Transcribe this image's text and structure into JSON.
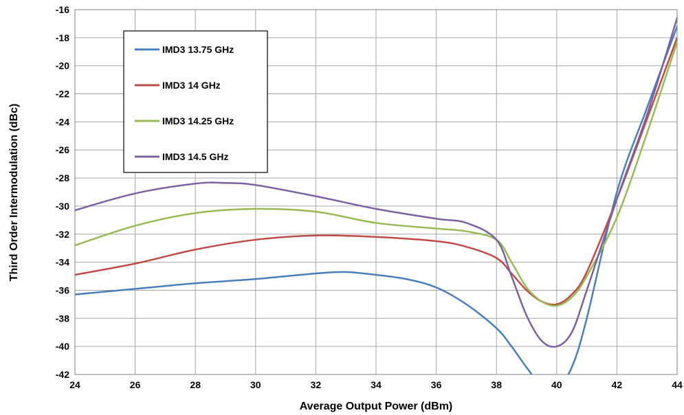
{
  "chart_data": {
    "type": "line",
    "xlabel": "Average Output Power (dBm)",
    "ylabel": "Third Order Intermodulation (dBc)",
    "xlim": [
      24,
      44
    ],
    "ylim": [
      -42,
      -16
    ],
    "xticks": [
      "24",
      "26",
      "28",
      "30",
      "32",
      "34",
      "36",
      "38",
      "40",
      "42",
      "44"
    ],
    "yticks": [
      "-16",
      "-18",
      "-20",
      "-22",
      "-24",
      "-26",
      "-28",
      "-30",
      "-32",
      "-34",
      "-36",
      "-38",
      "-40",
      "-42"
    ],
    "grid": true,
    "legend_position": "top-left",
    "series": [
      {
        "name": "IMD3 13.75 GHz",
        "color": "#4a7ebb",
        "points": [
          [
            24,
            -36.3
          ],
          [
            26,
            -35.9
          ],
          [
            28,
            -35.5
          ],
          [
            30,
            -35.2
          ],
          [
            32,
            -34.8
          ],
          [
            33,
            -34.7
          ],
          [
            34,
            -34.9
          ],
          [
            35,
            -35.2
          ],
          [
            36,
            -35.8
          ],
          [
            37,
            -37.0
          ],
          [
            38,
            -38.7
          ],
          [
            38.5,
            -40.0
          ],
          [
            39,
            -41.5
          ],
          [
            39.5,
            -42.8
          ],
          [
            40,
            -43.0
          ],
          [
            40.5,
            -41.5
          ],
          [
            41,
            -38.0
          ],
          [
            42,
            -29.0
          ],
          [
            43,
            -23.0
          ],
          [
            44,
            -17.2
          ]
        ]
      },
      {
        "name": "IMD3 14 GHz",
        "color": "#be4b48",
        "points": [
          [
            24,
            -34.9
          ],
          [
            26,
            -34.1
          ],
          [
            28,
            -33.1
          ],
          [
            30,
            -32.4
          ],
          [
            32,
            -32.1
          ],
          [
            34,
            -32.2
          ],
          [
            36,
            -32.5
          ],
          [
            37,
            -32.9
          ],
          [
            38,
            -33.7
          ],
          [
            38.5,
            -34.8
          ],
          [
            39,
            -36.0
          ],
          [
            39.5,
            -36.8
          ],
          [
            40,
            -37.0
          ],
          [
            40.5,
            -36.3
          ],
          [
            41,
            -34.7
          ],
          [
            42,
            -29.5
          ],
          [
            43,
            -23.8
          ],
          [
            44,
            -18.0
          ]
        ]
      },
      {
        "name": "IMD3 14.25 GHz",
        "color": "#98b954",
        "points": [
          [
            24,
            -32.8
          ],
          [
            26,
            -31.4
          ],
          [
            28,
            -30.5
          ],
          [
            30,
            -30.2
          ],
          [
            32,
            -30.4
          ],
          [
            34,
            -31.2
          ],
          [
            36,
            -31.6
          ],
          [
            37,
            -31.8
          ],
          [
            38,
            -32.4
          ],
          [
            38.5,
            -34.0
          ],
          [
            39,
            -35.8
          ],
          [
            39.5,
            -36.8
          ],
          [
            40,
            -37.1
          ],
          [
            40.5,
            -36.5
          ],
          [
            41,
            -35.0
          ],
          [
            42,
            -30.8
          ],
          [
            43,
            -24.8
          ],
          [
            44,
            -18.3
          ]
        ]
      },
      {
        "name": "IMD3 14.5 GHz",
        "color": "#7d60a0",
        "points": [
          [
            24,
            -30.3
          ],
          [
            26,
            -29.1
          ],
          [
            28,
            -28.4
          ],
          [
            29,
            -28.35
          ],
          [
            30,
            -28.5
          ],
          [
            32,
            -29.3
          ],
          [
            34,
            -30.2
          ],
          [
            36,
            -30.9
          ],
          [
            37,
            -31.2
          ],
          [
            38,
            -32.4
          ],
          [
            38.5,
            -35.0
          ],
          [
            39,
            -37.8
          ],
          [
            39.5,
            -39.6
          ],
          [
            40,
            -40.0
          ],
          [
            40.5,
            -39.0
          ],
          [
            41,
            -36.0
          ],
          [
            42,
            -29.5
          ],
          [
            43,
            -23.5
          ],
          [
            44,
            -16.6
          ]
        ]
      }
    ]
  }
}
